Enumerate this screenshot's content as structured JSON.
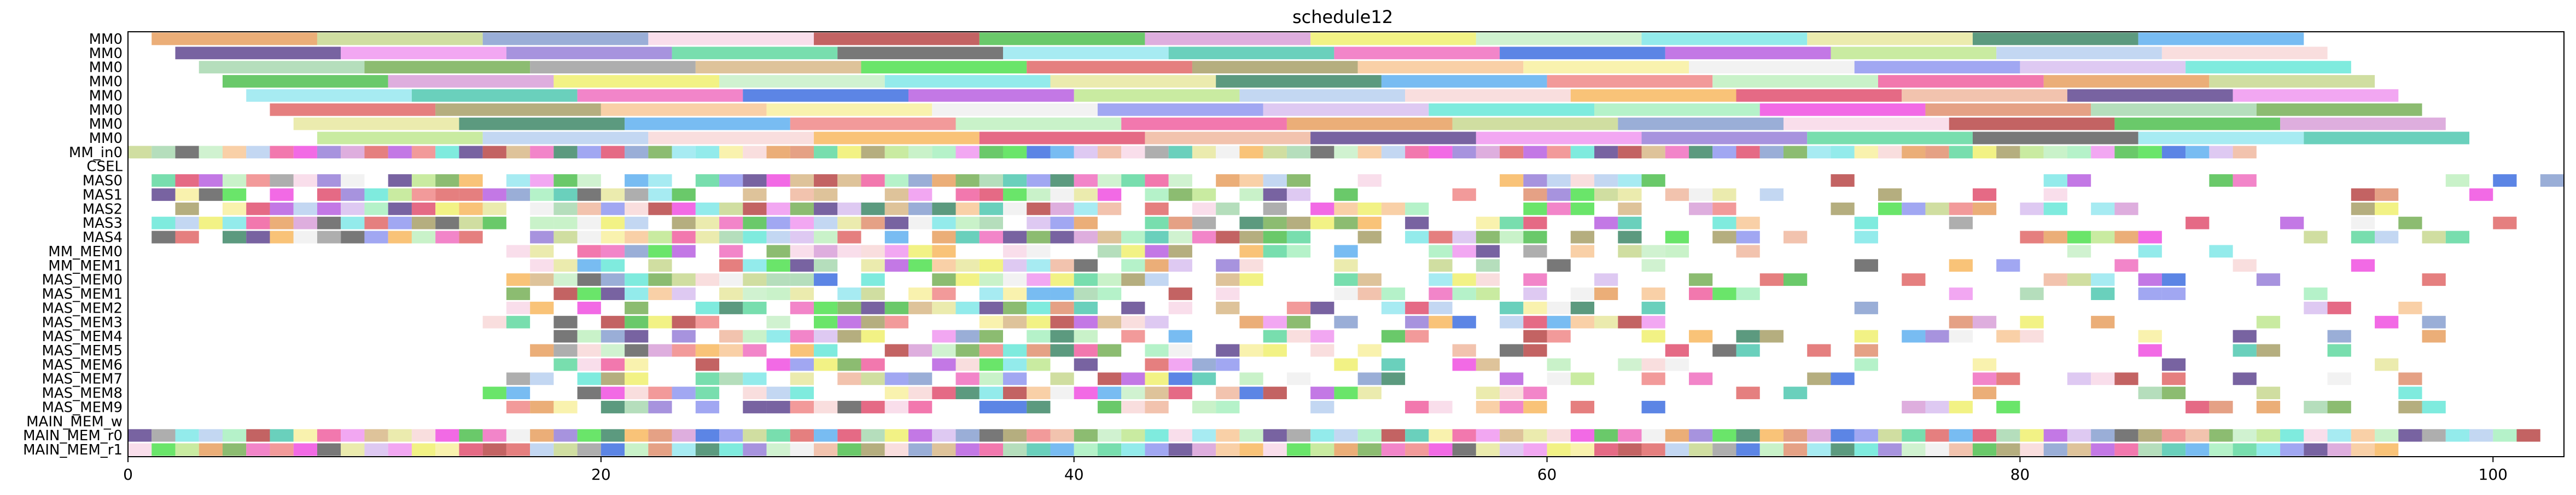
{
  "chart_data": {
    "type": "gantt",
    "title": "schedule12",
    "xlabel": "",
    "ylabel": "",
    "xlim": [
      0,
      103
    ],
    "x_ticks": [
      0,
      20,
      40,
      60,
      80,
      100
    ],
    "grid": false,
    "legend": "none",
    "rows": [
      "MM0",
      "MM0",
      "MM0",
      "MM0",
      "MM0",
      "MM0",
      "MM0",
      "MM0",
      "MM_in0",
      "CSEL",
      "MAS0",
      "MAS1",
      "MAS2",
      "MAS3",
      "MAS4",
      "MM_MEM0",
      "MM_MEM1",
      "MAS_MEM0",
      "MAS_MEM1",
      "MAS_MEM2",
      "MAS_MEM3",
      "MAS_MEM4",
      "MAS_MEM5",
      "MAS_MEM6",
      "MAS_MEM7",
      "MAS_MEM8",
      "MAS_MEM9",
      "MAIN_MEM_w",
      "MAIN_MEM_r0",
      "MAIN_MEM_r1"
    ],
    "palette": [
      "#e8a060",
      "#a8f0c0",
      "#f0b8a0",
      "#c8d890",
      "#f050e0",
      "#604890",
      "#88a0d0",
      "#e09070",
      "#f098f0",
      "#f8d8e8",
      "#a8d8b0",
      "#9880d8",
      "#b84848",
      "#78b058",
      "#60d8a0",
      "#50c050",
      "#a0a0a0",
      "#606060",
      "#d8a0d8",
      "#d8b888",
      "#98e8f0",
      "#f0f070",
      "#50e050",
      "#50c8b0",
      "#c8f0c8",
      "#e06868",
      "#f070c0",
      "#80e8e8",
      "#a8a068",
      "#4070e0",
      "#e8e8a0",
      "#f8c898",
      "#b860e0",
      "#408868",
      "#f8f0a0",
      "#c0e890",
      "#60b0f0",
      "#f0f0f0",
      "#b8d0f0",
      "#f08888",
      "#9098f0",
      "#f8d8d8",
      "#c0f0c0",
      "#d8c0f0",
      "#f8b860",
      "#f060a0",
      "#68e8d8",
      "#e05070"
    ],
    "rectangles": {
      "MM0": [
        [
          1,
          8
        ],
        [
          8,
          15
        ],
        [
          15,
          22
        ],
        [
          22,
          29
        ],
        [
          29,
          36
        ],
        [
          36,
          43
        ],
        [
          43,
          50
        ],
        [
          50,
          57
        ],
        [
          57,
          64
        ],
        [
          64,
          71
        ],
        [
          71,
          78
        ],
        [
          78,
          85
        ],
        [
          85,
          92
        ],
        [
          2,
          9
        ],
        [
          9,
          16
        ],
        [
          16,
          23
        ],
        [
          23,
          30
        ],
        [
          30,
          37
        ],
        [
          37,
          44
        ],
        [
          44,
          51
        ],
        [
          51,
          58
        ],
        [
          58,
          65
        ],
        [
          65,
          72
        ],
        [
          72,
          79
        ],
        [
          79,
          86
        ],
        [
          86,
          93
        ],
        [
          3,
          10
        ],
        [
          10,
          17
        ],
        [
          17,
          24
        ],
        [
          24,
          31
        ],
        [
          31,
          38
        ],
        [
          38,
          45
        ],
        [
          45,
          52
        ],
        [
          52,
          59
        ],
        [
          59,
          66
        ],
        [
          66,
          73
        ],
        [
          73,
          80
        ],
        [
          80,
          87
        ],
        [
          87,
          94
        ],
        [
          4,
          11
        ],
        [
          11,
          18
        ],
        [
          18,
          25
        ],
        [
          25,
          32
        ],
        [
          32,
          39
        ],
        [
          39,
          46
        ],
        [
          46,
          53
        ],
        [
          53,
          60
        ],
        [
          60,
          67
        ],
        [
          67,
          74
        ],
        [
          74,
          81
        ],
        [
          81,
          88
        ],
        [
          88,
          95
        ],
        [
          5,
          12
        ],
        [
          12,
          19
        ],
        [
          19,
          26
        ],
        [
          26,
          33
        ],
        [
          33,
          40
        ],
        [
          40,
          47
        ],
        [
          47,
          54
        ],
        [
          54,
          61
        ],
        [
          61,
          68
        ],
        [
          68,
          75
        ],
        [
          75,
          82
        ],
        [
          82,
          89
        ],
        [
          89,
          96
        ],
        [
          6,
          13
        ],
        [
          13,
          20
        ],
        [
          20,
          27
        ],
        [
          27,
          34
        ],
        [
          34,
          41
        ],
        [
          41,
          48
        ],
        [
          48,
          55
        ],
        [
          55,
          62
        ],
        [
          62,
          69
        ],
        [
          69,
          76
        ],
        [
          76,
          83
        ],
        [
          83,
          90
        ],
        [
          90,
          97
        ],
        [
          7,
          14
        ],
        [
          14,
          21
        ],
        [
          21,
          28
        ],
        [
          28,
          35
        ],
        [
          35,
          42
        ],
        [
          42,
          49
        ],
        [
          49,
          56
        ],
        [
          56,
          63
        ],
        [
          63,
          70
        ],
        [
          70,
          77
        ],
        [
          77,
          84
        ],
        [
          84,
          91
        ]
      ]
    }
  }
}
